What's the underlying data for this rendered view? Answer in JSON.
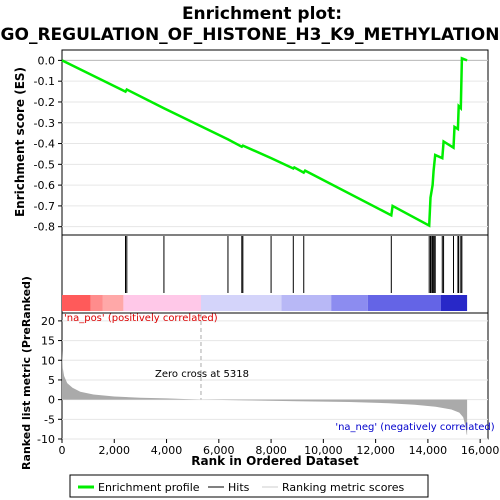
{
  "chart_data": {
    "type": "line",
    "title_line1": "Enrichment plot:",
    "title_line2": "GO_REGULATION_OF_HISTONE_H3_K9_METHYLATION",
    "es_panel": {
      "ylabel": "Enrichment score (ES)",
      "ylim": [
        -0.84,
        0.05
      ],
      "yticks": [
        "0.0",
        "-0.1",
        "-0.2",
        "-0.3",
        "-0.4",
        "-0.5",
        "-0.6",
        "-0.7",
        "-0.8"
      ],
      "ytick_values": [
        0.0,
        -0.1,
        -0.2,
        -0.3,
        -0.4,
        -0.5,
        -0.6,
        -0.7,
        -0.8
      ],
      "series_color": "#00ee00",
      "points": [
        [
          0,
          0.0
        ],
        [
          2430,
          -0.15
        ],
        [
          2480,
          -0.14
        ],
        [
          3900,
          -0.23
        ],
        [
          6350,
          -0.38
        ],
        [
          6880,
          -0.415
        ],
        [
          6920,
          -0.41
        ],
        [
          8000,
          -0.47
        ],
        [
          8850,
          -0.52
        ],
        [
          8890,
          -0.515
        ],
        [
          9250,
          -0.54
        ],
        [
          9300,
          -0.53
        ],
        [
          12600,
          -0.745
        ],
        [
          12650,
          -0.7
        ],
        [
          14050,
          -0.795
        ],
        [
          14100,
          -0.66
        ],
        [
          14180,
          -0.6
        ],
        [
          14220,
          -0.53
        ],
        [
          14280,
          -0.455
        ],
        [
          14550,
          -0.47
        ],
        [
          14600,
          -0.39
        ],
        [
          14980,
          -0.42
        ],
        [
          15020,
          -0.32
        ],
        [
          15150,
          -0.33
        ],
        [
          15180,
          -0.22
        ],
        [
          15260,
          -0.23
        ],
        [
          15300,
          0.01
        ],
        [
          15500,
          0.0
        ]
      ]
    },
    "hits": [
      2430,
      2480,
      3900,
      6350,
      6880,
      6920,
      8000,
      8850,
      9250,
      12600,
      14050,
      14100,
      14150,
      14180,
      14220,
      14260,
      14280,
      14550,
      14600,
      14980,
      15150,
      15180,
      15260,
      15300
    ],
    "metric_panel": {
      "ylabel": "Ranked list metric (PreRanked)",
      "xlabel": "Rank in Ordered Dataset",
      "ylim": [
        -10,
        22
      ],
      "yticks": [
        "20",
        "15",
        "10",
        "5",
        "0",
        "-5",
        "-10"
      ],
      "ytick_values": [
        20,
        15,
        10,
        5,
        0,
        -5,
        -10
      ],
      "xlim": [
        0,
        16300
      ],
      "xticks": [
        "0",
        "2,000",
        "4,000",
        "6,000",
        "8,000",
        "10,000",
        "12,000",
        "14,000",
        "16,000"
      ],
      "xtick_values": [
        0,
        2000,
        4000,
        6000,
        8000,
        10000,
        12000,
        14000,
        16000
      ],
      "total_ranks": 15500,
      "zero_cross_rank": 5318,
      "zero_cross_label": "Zero cross at 5318",
      "pos_label": "'na_pos' (positively correlated)",
      "neg_label": "'na_neg' (negatively correlated)",
      "pos_label_color": "#dd0000",
      "neg_label_color": "#0000cc",
      "fill_color": "#aaaaaa",
      "metric_curve": [
        [
          0,
          12.5
        ],
        [
          30,
          8.0
        ],
        [
          80,
          6.0
        ],
        [
          200,
          4.2
        ],
        [
          400,
          3.0
        ],
        [
          700,
          2.0
        ],
        [
          1200,
          1.3
        ],
        [
          2000,
          0.8
        ],
        [
          3000,
          0.5
        ],
        [
          4000,
          0.3
        ],
        [
          5318,
          0.0
        ],
        [
          7000,
          -0.2
        ],
        [
          9000,
          -0.4
        ],
        [
          11000,
          -0.6
        ],
        [
          12500,
          -0.9
        ],
        [
          13500,
          -1.3
        ],
        [
          14300,
          -1.8
        ],
        [
          14900,
          -2.5
        ],
        [
          15200,
          -3.3
        ],
        [
          15350,
          -4.5
        ],
        [
          15430,
          -6.5
        ],
        [
          15480,
          -8.8
        ],
        [
          15500,
          -9.0
        ]
      ]
    },
    "color_bar": [
      {
        "from": 0,
        "to": 1100,
        "color": "#ff5a5a"
      },
      {
        "from": 1100,
        "to": 1550,
        "color": "#ff8c8c"
      },
      {
        "from": 1550,
        "to": 2350,
        "color": "#ffa8a8"
      },
      {
        "from": 2350,
        "to": 5318,
        "color": "#ffc8e8"
      },
      {
        "from": 5318,
        "to": 8400,
        "color": "#d4d4fa"
      },
      {
        "from": 8400,
        "to": 10300,
        "color": "#b8b8f6"
      },
      {
        "from": 10300,
        "to": 11700,
        "color": "#8c8cf0"
      },
      {
        "from": 11700,
        "to": 14500,
        "color": "#6464e6"
      },
      {
        "from": 14500,
        "to": 15500,
        "color": "#2828c8"
      }
    ],
    "legend": {
      "items": [
        {
          "label": "Enrichment profile",
          "color": "#00ee00",
          "kind": "thick"
        },
        {
          "label": "Hits",
          "color": "#000000",
          "kind": "thin"
        },
        {
          "label": "Ranking metric scores",
          "color": "#cccccc",
          "kind": "thin"
        }
      ]
    }
  }
}
